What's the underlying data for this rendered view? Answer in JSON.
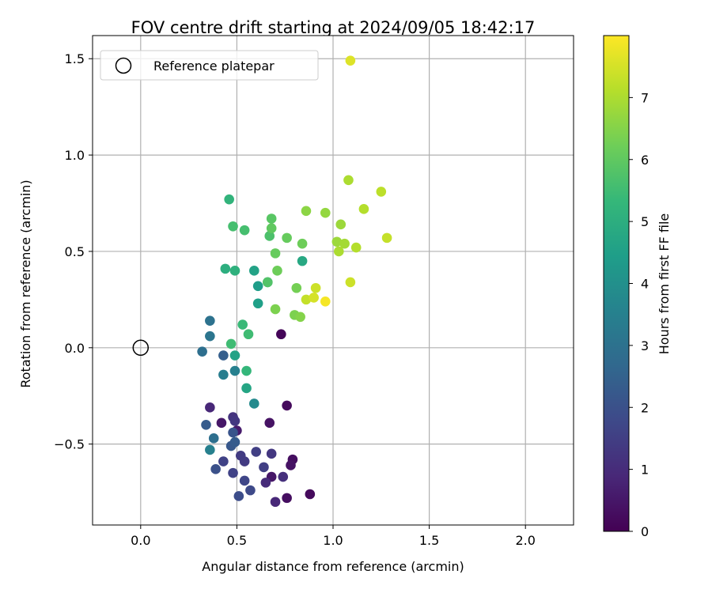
{
  "chart_data": {
    "type": "scatter",
    "title": "FOV centre drift starting at 2024/09/05 18:42:17",
    "xlabel": "Angular distance from reference (arcmin)",
    "ylabel": "Rotation from reference (arcmin)",
    "xlim": [
      -0.25,
      2.25
    ],
    "ylim": [
      -0.92,
      1.62
    ],
    "xticks": [
      0.0,
      0.5,
      1.0,
      1.5,
      2.0
    ],
    "xtick_labels": [
      "0.0",
      "0.5",
      "1.0",
      "1.5",
      "2.0"
    ],
    "yticks": [
      -0.5,
      0.0,
      0.5,
      1.0,
      1.5
    ],
    "ytick_labels": [
      "−0.5",
      "0.0",
      "0.5",
      "1.0",
      "1.5"
    ],
    "grid": true,
    "legend": {
      "position": "top-left",
      "entries": [
        "Reference platepar"
      ]
    },
    "reference_point": {
      "x": 0.0,
      "y": 0.0,
      "label": "Reference platepar"
    },
    "colorbar": {
      "label": "Hours from first FF file",
      "range": [
        0,
        8
      ],
      "ticks": [
        0,
        1,
        2,
        3,
        4,
        5,
        6,
        7
      ],
      "colormap": "viridis",
      "colormap_stops": [
        "#440154",
        "#482878",
        "#3e4989",
        "#31688e",
        "#26828e",
        "#1f9e89",
        "#35b779",
        "#6ece58",
        "#b5de2b",
        "#fde725"
      ]
    },
    "points": [
      {
        "x": 0.73,
        "y": 0.07,
        "h": 0.1
      },
      {
        "x": 0.76,
        "y": -0.3,
        "h": 0.2
      },
      {
        "x": 0.88,
        "y": -0.76,
        "h": 0.2
      },
      {
        "x": 0.76,
        "y": -0.78,
        "h": 0.3
      },
      {
        "x": 0.79,
        "y": -0.58,
        "h": 0.3
      },
      {
        "x": 0.78,
        "y": -0.61,
        "h": 0.4
      },
      {
        "x": 0.67,
        "y": -0.39,
        "h": 0.4
      },
      {
        "x": 0.68,
        "y": -0.67,
        "h": 0.5
      },
      {
        "x": 0.42,
        "y": -0.39,
        "h": 0.5
      },
      {
        "x": 0.5,
        "y": -0.43,
        "h": 0.6
      },
      {
        "x": 0.36,
        "y": -0.31,
        "h": 0.9
      },
      {
        "x": 0.7,
        "y": -0.8,
        "h": 0.9
      },
      {
        "x": 0.65,
        "y": -0.7,
        "h": 1.0
      },
      {
        "x": 0.74,
        "y": -0.67,
        "h": 1.1
      },
      {
        "x": 0.48,
        "y": -0.36,
        "h": 1.2
      },
      {
        "x": 0.49,
        "y": -0.38,
        "h": 1.3
      },
      {
        "x": 0.68,
        "y": -0.55,
        "h": 1.3
      },
      {
        "x": 0.52,
        "y": -0.56,
        "h": 1.4
      },
      {
        "x": 0.54,
        "y": -0.59,
        "h": 1.4
      },
      {
        "x": 0.6,
        "y": -0.54,
        "h": 1.5
      },
      {
        "x": 0.64,
        "y": -0.62,
        "h": 1.5
      },
      {
        "x": 0.43,
        "y": -0.59,
        "h": 1.6
      },
      {
        "x": 0.48,
        "y": -0.65,
        "h": 1.6
      },
      {
        "x": 0.54,
        "y": -0.69,
        "h": 1.7
      },
      {
        "x": 0.57,
        "y": -0.74,
        "h": 1.8
      },
      {
        "x": 0.51,
        "y": -0.77,
        "h": 1.9
      },
      {
        "x": 0.39,
        "y": -0.63,
        "h": 2.0
      },
      {
        "x": 0.48,
        "y": -0.44,
        "h": 2.1
      },
      {
        "x": 0.47,
        "y": -0.51,
        "h": 2.2
      },
      {
        "x": 0.49,
        "y": -0.49,
        "h": 2.3
      },
      {
        "x": 0.34,
        "y": -0.4,
        "h": 2.3
      },
      {
        "x": 0.43,
        "y": -0.04,
        "h": 2.4
      },
      {
        "x": 0.38,
        "y": -0.47,
        "h": 2.9
      },
      {
        "x": 0.32,
        "y": -0.02,
        "h": 2.9
      },
      {
        "x": 0.36,
        "y": 0.14,
        "h": 3.0
      },
      {
        "x": 0.36,
        "y": 0.06,
        "h": 3.1
      },
      {
        "x": 0.43,
        "y": -0.14,
        "h": 3.4
      },
      {
        "x": 0.49,
        "y": -0.12,
        "h": 3.5
      },
      {
        "x": 0.36,
        "y": -0.53,
        "h": 3.5
      },
      {
        "x": 0.59,
        "y": -0.29,
        "h": 3.8
      },
      {
        "x": 0.61,
        "y": 0.32,
        "h": 4.4
      },
      {
        "x": 0.61,
        "y": 0.23,
        "h": 4.5
      },
      {
        "x": 0.59,
        "y": 0.4,
        "h": 4.6
      },
      {
        "x": 0.49,
        "y": -0.04,
        "h": 4.6
      },
      {
        "x": 0.55,
        "y": -0.21,
        "h": 4.7
      },
      {
        "x": 0.84,
        "y": 0.45,
        "h": 4.8
      },
      {
        "x": 0.66,
        "y": 0.34,
        "h": 4.9
      },
      {
        "x": 0.44,
        "y": 0.41,
        "h": 5.0
      },
      {
        "x": 0.49,
        "y": 0.4,
        "h": 5.1
      },
      {
        "x": 0.46,
        "y": 0.77,
        "h": 5.2
      },
      {
        "x": 0.55,
        "y": -0.12,
        "h": 5.3
      },
      {
        "x": 0.53,
        "y": 0.12,
        "h": 5.4
      },
      {
        "x": 0.56,
        "y": 0.07,
        "h": 5.5
      },
      {
        "x": 0.47,
        "y": 0.02,
        "h": 5.5
      },
      {
        "x": 0.48,
        "y": 0.63,
        "h": 5.6
      },
      {
        "x": 0.54,
        "y": 0.61,
        "h": 5.6
      },
      {
        "x": 0.67,
        "y": 0.58,
        "h": 5.7
      },
      {
        "x": 0.66,
        "y": 0.34,
        "h": 5.8
      },
      {
        "x": 0.68,
        "y": 0.67,
        "h": 5.9
      },
      {
        "x": 0.68,
        "y": 0.62,
        "h": 6.0
      },
      {
        "x": 0.7,
        "y": 0.49,
        "h": 6.1
      },
      {
        "x": 0.76,
        "y": 0.57,
        "h": 6.1
      },
      {
        "x": 0.84,
        "y": 0.54,
        "h": 6.2
      },
      {
        "x": 0.71,
        "y": 0.4,
        "h": 6.2
      },
      {
        "x": 0.81,
        "y": 0.31,
        "h": 6.3
      },
      {
        "x": 0.7,
        "y": 0.2,
        "h": 6.4
      },
      {
        "x": 0.8,
        "y": 0.17,
        "h": 6.4
      },
      {
        "x": 0.83,
        "y": 0.16,
        "h": 6.5
      },
      {
        "x": 0.86,
        "y": 0.71,
        "h": 6.6
      },
      {
        "x": 0.96,
        "y": 0.7,
        "h": 6.7
      },
      {
        "x": 1.04,
        "y": 0.64,
        "h": 6.8
      },
      {
        "x": 1.02,
        "y": 0.55,
        "h": 6.8
      },
      {
        "x": 1.06,
        "y": 0.54,
        "h": 6.9
      },
      {
        "x": 1.03,
        "y": 0.5,
        "h": 7.0
      },
      {
        "x": 1.08,
        "y": 0.87,
        "h": 7.0
      },
      {
        "x": 1.12,
        "y": 0.52,
        "h": 7.1
      },
      {
        "x": 1.16,
        "y": 0.72,
        "h": 7.1
      },
      {
        "x": 1.25,
        "y": 0.81,
        "h": 7.2
      },
      {
        "x": 1.28,
        "y": 0.57,
        "h": 7.3
      },
      {
        "x": 0.86,
        "y": 0.25,
        "h": 7.3
      },
      {
        "x": 0.91,
        "y": 0.31,
        "h": 7.4
      },
      {
        "x": 1.09,
        "y": 0.34,
        "h": 7.4
      },
      {
        "x": 0.9,
        "y": 0.26,
        "h": 7.5
      },
      {
        "x": 1.09,
        "y": 1.49,
        "h": 7.6
      },
      {
        "x": 0.96,
        "y": 0.24,
        "h": 7.9
      }
    ]
  }
}
